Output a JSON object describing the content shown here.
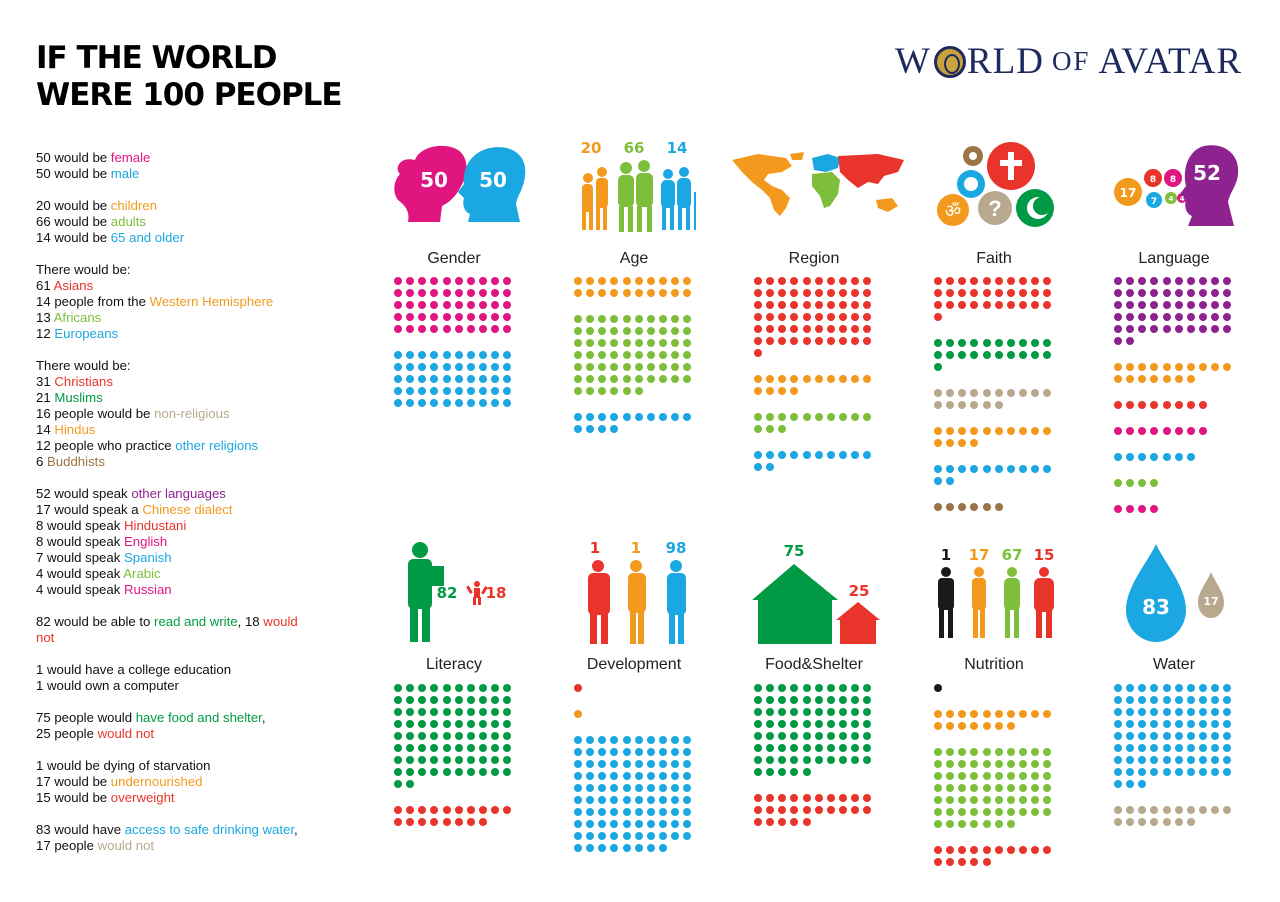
{
  "title": {
    "line1": "IF THE WORLD",
    "line2": "WERE 100 PEOPLE"
  },
  "brand": {
    "w": "W",
    "rld": "RLD",
    "of": "OF",
    "avatar": "AVATAR"
  },
  "colors": {
    "magenta": "#e0157f",
    "cyan": "#1ba7e1",
    "orange": "#f39a1e",
    "green": "#7dbf3b",
    "red": "#e8342b",
    "tan": "#b8a98e",
    "brown": "#9b7447",
    "purple": "#8e2390",
    "darkgreen": "#009a44",
    "black": "#1a1a1a"
  },
  "facts": [
    [
      [
        [
          "50 would be ",
          ""
        ],
        [
          "female",
          "magenta"
        ]
      ],
      [
        [
          "50 would be ",
          ""
        ],
        [
          "male",
          "cyan"
        ]
      ]
    ],
    [
      [
        [
          "20 would be ",
          ""
        ],
        [
          "children",
          "orange"
        ]
      ],
      [
        [
          "66 would be ",
          ""
        ],
        [
          "adults",
          "green"
        ]
      ],
      [
        [
          "14 would be ",
          ""
        ],
        [
          "65 and older",
          "cyan"
        ]
      ]
    ],
    [
      [
        [
          "There would be:",
          ""
        ]
      ],
      [
        [
          "61 ",
          ""
        ],
        [
          "Asians",
          "red"
        ]
      ],
      [
        [
          "14 people from the ",
          ""
        ],
        [
          "Western Hemisphere",
          "orange"
        ]
      ],
      [
        [
          "13 ",
          ""
        ],
        [
          "Africans",
          "green"
        ]
      ],
      [
        [
          "12 ",
          ""
        ],
        [
          "Europeans",
          "cyan"
        ]
      ]
    ],
    [
      [
        [
          "There would be:",
          ""
        ]
      ],
      [
        [
          "31 ",
          ""
        ],
        [
          "Christians",
          "red"
        ]
      ],
      [
        [
          "21 ",
          ""
        ],
        [
          "Muslims",
          "darkgreen"
        ]
      ],
      [
        [
          "16 people would be ",
          ""
        ],
        [
          "non-religious",
          "tan"
        ]
      ],
      [
        [
          "14 ",
          ""
        ],
        [
          "Hindus",
          "orange"
        ]
      ],
      [
        [
          "12 people who practice ",
          ""
        ],
        [
          "other religions",
          "cyan"
        ]
      ],
      [
        [
          "6 ",
          ""
        ],
        [
          "Buddhists",
          "brown"
        ]
      ]
    ],
    [
      [
        [
          "52 would speak ",
          ""
        ],
        [
          "other languages",
          "purple"
        ]
      ],
      [
        [
          "17 would speak a ",
          ""
        ],
        [
          "Chinese dialect",
          "orange"
        ]
      ],
      [
        [
          "8 would speak ",
          ""
        ],
        [
          "Hindustani",
          "red"
        ]
      ],
      [
        [
          "8 would speak ",
          ""
        ],
        [
          "English",
          "magenta"
        ]
      ],
      [
        [
          "7 would speak ",
          ""
        ],
        [
          "Spanish",
          "cyan"
        ]
      ],
      [
        [
          "4 would speak ",
          ""
        ],
        [
          "Arabic",
          "green"
        ]
      ],
      [
        [
          "4 would speak ",
          ""
        ],
        [
          "Russian",
          "magenta"
        ]
      ]
    ],
    [
      [
        [
          "82 would be able to ",
          ""
        ],
        [
          "read and write",
          "darkgreen"
        ],
        [
          ", 18 ",
          ""
        ],
        [
          "would",
          "red"
        ]
      ],
      [
        [
          "not",
          "red"
        ]
      ]
    ],
    [
      [
        [
          "1 would have a college education",
          ""
        ]
      ],
      [
        [
          "1 would own a computer",
          ""
        ]
      ]
    ],
    [
      [
        [
          "75 people would ",
          ""
        ],
        [
          "have food and shelter",
          "darkgreen"
        ],
        [
          ",",
          ""
        ]
      ],
      [
        [
          "25 people ",
          ""
        ],
        [
          "would not",
          "red"
        ]
      ]
    ],
    [
      [
        [
          "1 would be dying of starvation",
          ""
        ]
      ],
      [
        [
          "17 would be ",
          ""
        ],
        [
          "undernourished",
          "orange"
        ]
      ],
      [
        [
          "15 would be ",
          ""
        ],
        [
          "overweight",
          "red"
        ]
      ]
    ],
    [
      [
        [
          "83 would have ",
          ""
        ],
        [
          "access to safe drinking water",
          "cyan"
        ],
        [
          ",",
          ""
        ]
      ],
      [
        [
          "17 people ",
          ""
        ],
        [
          "would not",
          "tan"
        ]
      ]
    ]
  ],
  "chart_data": [
    {
      "type": "dot-grid",
      "title": "Gender",
      "illustration_labels": [
        "50",
        "50"
      ],
      "series": [
        {
          "name": "female",
          "value": 50,
          "color": "magenta"
        },
        {
          "name": "male",
          "value": 50,
          "color": "cyan"
        }
      ]
    },
    {
      "type": "dot-grid",
      "title": "Age",
      "illustration_labels": [
        "20",
        "66",
        "14"
      ],
      "series": [
        {
          "name": "children",
          "value": 20,
          "color": "orange"
        },
        {
          "name": "adults",
          "value": 66,
          "color": "green"
        },
        {
          "name": "65 and older",
          "value": 14,
          "color": "cyan"
        }
      ]
    },
    {
      "type": "dot-grid",
      "title": "Region",
      "illustration_labels": [],
      "series": [
        {
          "name": "Asians",
          "value": 61,
          "color": "red"
        },
        {
          "name": "Western Hemisphere",
          "value": 14,
          "color": "orange"
        },
        {
          "name": "Africans",
          "value": 13,
          "color": "green"
        },
        {
          "name": "Europeans",
          "value": 12,
          "color": "cyan"
        }
      ]
    },
    {
      "type": "dot-grid",
      "title": "Faith",
      "illustration_labels": [],
      "series": [
        {
          "name": "Christians",
          "value": 31,
          "color": "red"
        },
        {
          "name": "Muslims",
          "value": 21,
          "color": "darkgreen"
        },
        {
          "name": "non-religious",
          "value": 16,
          "color": "tan"
        },
        {
          "name": "Hindus",
          "value": 14,
          "color": "orange"
        },
        {
          "name": "other religions",
          "value": 12,
          "color": "cyan"
        },
        {
          "name": "Buddhists",
          "value": 6,
          "color": "brown"
        }
      ]
    },
    {
      "type": "dot-grid",
      "title": "Language",
      "illustration_labels": [
        "17",
        "8",
        "8",
        "7",
        "4",
        "4",
        "52"
      ],
      "series": [
        {
          "name": "other languages",
          "value": 52,
          "color": "purple"
        },
        {
          "name": "Chinese dialect",
          "value": 17,
          "color": "orange"
        },
        {
          "name": "Hindustani",
          "value": 8,
          "color": "red"
        },
        {
          "name": "English",
          "value": 8,
          "color": "magenta"
        },
        {
          "name": "Spanish",
          "value": 7,
          "color": "cyan"
        },
        {
          "name": "Arabic",
          "value": 4,
          "color": "green"
        },
        {
          "name": "Russian",
          "value": 4,
          "color": "magenta"
        }
      ]
    },
    {
      "type": "dot-grid",
      "title": "Literacy",
      "illustration_labels": [
        "82",
        "18"
      ],
      "series": [
        {
          "name": "read and write",
          "value": 82,
          "color": "darkgreen"
        },
        {
          "name": "would not",
          "value": 18,
          "color": "red"
        }
      ]
    },
    {
      "type": "dot-grid",
      "title": "Development",
      "illustration_labels": [
        "1",
        "1",
        "98"
      ],
      "series": [
        {
          "name": "college education",
          "value": 1,
          "color": "red"
        },
        {
          "name": "own a computer",
          "value": 1,
          "color": "orange"
        },
        {
          "name": "",
          "value": 98,
          "color": "cyan"
        }
      ]
    },
    {
      "type": "dot-grid",
      "title": "Food&Shelter",
      "illustration_labels": [
        "75",
        "25"
      ],
      "series": [
        {
          "name": "have food and shelter",
          "value": 75,
          "color": "darkgreen"
        },
        {
          "name": "would not",
          "value": 25,
          "color": "red"
        }
      ]
    },
    {
      "type": "dot-grid",
      "title": "Nutrition",
      "illustration_labels": [
        "1",
        "17",
        "67",
        "15"
      ],
      "series": [
        {
          "name": "dying of starvation",
          "value": 1,
          "color": "black"
        },
        {
          "name": "undernourished",
          "value": 17,
          "color": "orange"
        },
        {
          "name": "",
          "value": 67,
          "color": "green"
        },
        {
          "name": "overweight",
          "value": 15,
          "color": "red"
        }
      ]
    },
    {
      "type": "dot-grid",
      "title": "Water",
      "illustration_labels": [
        "83",
        "17"
      ],
      "series": [
        {
          "name": "access to safe drinking water",
          "value": 83,
          "color": "cyan"
        },
        {
          "name": "would not",
          "value": 17,
          "color": "tan"
        }
      ]
    }
  ]
}
